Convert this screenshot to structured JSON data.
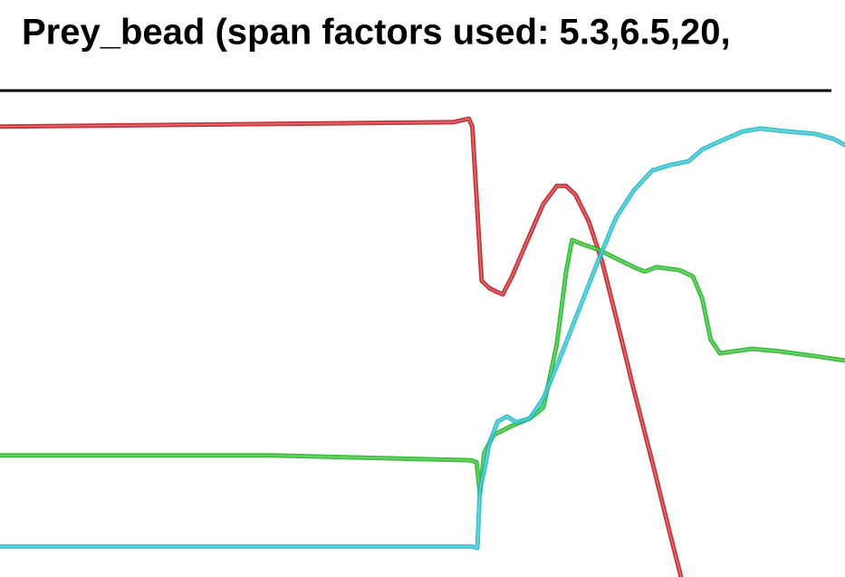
{
  "chart_data": {
    "type": "line",
    "title": "Prey_bead (span factors used: 5.3,6.5,20,",
    "xlim": [
      0,
      100
    ],
    "ylim": [
      0,
      100
    ],
    "series": [
      {
        "color": "#c0141a",
        "x": [
          0,
          53.6,
          55.5,
          55.9,
          56.6,
          57.0,
          57.9,
          58.7,
          59.5,
          60.6,
          62.2,
          64.3,
          65.9,
          67.0,
          68.1,
          69.7,
          71.3,
          72.9,
          75.0,
          77.2,
          79.3,
          80.6
        ],
        "values": [
          92.6,
          93.5,
          94.2,
          92.6,
          72.1,
          60.9,
          59.4,
          58.7,
          58.1,
          61.8,
          68.3,
          76.7,
          80.4,
          80.4,
          78.6,
          73.0,
          64.6,
          53.4,
          38.5,
          23.6,
          8.8,
          0
        ]
      },
      {
        "color": "#1cb41c",
        "x": [
          0,
          32.2,
          55.7,
          56.4,
          56.8,
          57.3,
          58.4,
          60.6,
          62.7,
          64.3,
          65.9,
          67.0,
          67.7,
          69.1,
          70.7,
          72.9,
          75.0,
          76.3,
          77.7,
          80.4,
          82.0,
          83.1,
          84.1,
          85.2,
          89.0,
          92.2,
          96.5,
          100
        ],
        "values": [
          25.0,
          25.0,
          24.0,
          23.6,
          17.1,
          25.5,
          29.2,
          31.1,
          32.6,
          34.8,
          47.9,
          62.8,
          69.3,
          68.3,
          67.4,
          65.5,
          63.7,
          62.8,
          63.7,
          63.1,
          61.8,
          57.2,
          48.8,
          46.0,
          46.9,
          46.4,
          45.4,
          44.5
        ]
      },
      {
        "color": "#1ab8c8",
        "x": [
          0,
          55.7,
          56.5,
          56.8,
          57.3,
          57.9,
          58.9,
          60.0,
          61.1,
          62.7,
          64.3,
          66.5,
          68.6,
          70.7,
          72.9,
          75.0,
          77.2,
          79.3,
          81.5,
          83.1,
          84.7,
          87.9,
          90.0,
          93.2,
          96.5,
          98.6,
          100
        ],
        "values": [
          6.3,
          6.3,
          6.0,
          18.1,
          21.8,
          27.4,
          32.0,
          33.0,
          31.8,
          32.6,
          36.7,
          46.0,
          55.3,
          64.6,
          73.9,
          79.5,
          83.6,
          84.7,
          85.5,
          87.9,
          89.2,
          91.6,
          92.2,
          91.6,
          91.1,
          90.1,
          88.8
        ]
      }
    ]
  }
}
